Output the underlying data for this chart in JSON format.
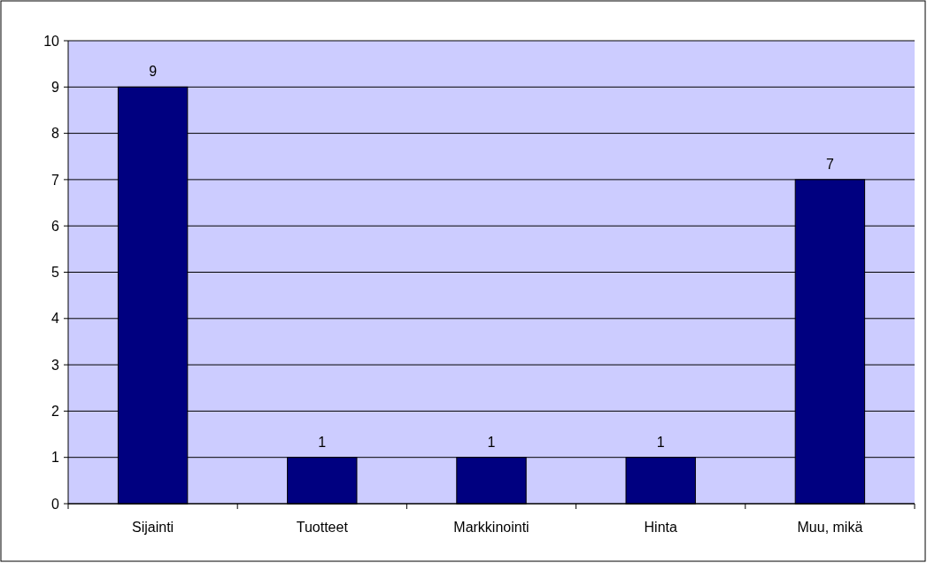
{
  "chart_data": {
    "type": "bar",
    "categories": [
      "Sijainti",
      "Tuotteet",
      "Markkinointi",
      "Hinta",
      "Muu, mikä"
    ],
    "values": [
      9,
      1,
      1,
      1,
      7
    ],
    "color": "#000080",
    "ylim": [
      0,
      10
    ],
    "yticks": [
      0,
      1,
      2,
      3,
      4,
      5,
      6,
      7,
      8,
      9,
      10
    ],
    "grid": "y",
    "data_labels": true
  }
}
